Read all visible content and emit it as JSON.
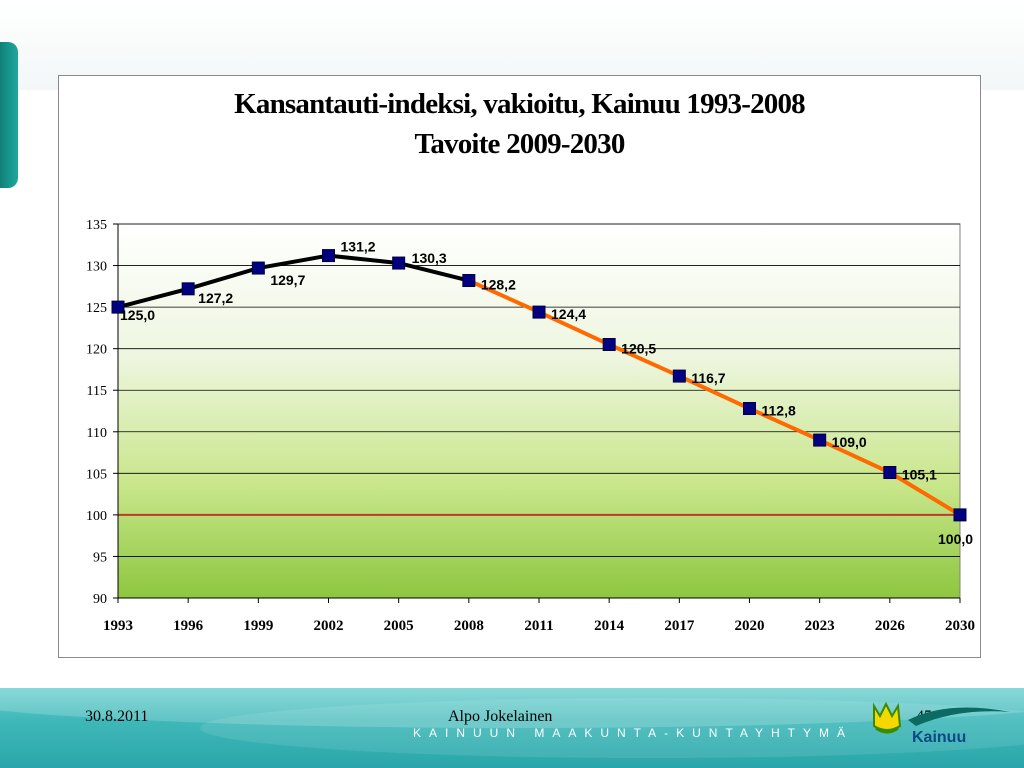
{
  "title_line1": "Kansantauti-indeksi, vakioitu, Kainuu 1993-2008",
  "title_line2": "Tavoite 2009-2030",
  "footer": {
    "date": "30.8.2011",
    "author": "Alpo Jokelainen",
    "page": "45",
    "brand": "KAINUUN MAAKUNTA-KUNTAYHTYMÄ",
    "logo_text": "Kainuu"
  },
  "colors": {
    "history_line": "#000000",
    "target_line": "#ff6a00",
    "marker": "#000080",
    "reference_line": "#c0392b",
    "teal": "#1aa39a"
  },
  "chart_data": {
    "type": "line",
    "title": "Kansantauti-indeksi, vakioitu, Kainuu 1993-2008 Tavoite 2009-2030",
    "categories": [
      "1993",
      "1996",
      "1999",
      "2002",
      "2005",
      "2008",
      "2011",
      "2014",
      "2017",
      "2020",
      "2023",
      "2026",
      "2030"
    ],
    "series": [
      {
        "values": [
          125.0,
          127.2,
          129.7,
          131.2,
          130.3,
          128.2,
          null,
          null,
          null,
          null,
          null,
          null,
          null
        ],
        "color": "#000000"
      },
      {
        "values": [
          null,
          null,
          null,
          null,
          null,
          128.2,
          124.4,
          120.5,
          116.7,
          112.8,
          109.0,
          105.1,
          100.0
        ],
        "color": "#ff6a00"
      }
    ],
    "data_labels": [
      "125,0",
      "127,2",
      "129,7",
      "131,2",
      "130,3",
      "128,2",
      "124,4",
      "120,5",
      "116,7",
      "112,8",
      "109,0",
      "105,1",
      "100,0"
    ],
    "ylim": [
      90,
      135
    ],
    "yticks": [
      90,
      95,
      100,
      105,
      110,
      115,
      120,
      125,
      130,
      135
    ],
    "reference_line": 100,
    "grid": true,
    "legend": "none",
    "xlabel": "",
    "ylabel": ""
  }
}
